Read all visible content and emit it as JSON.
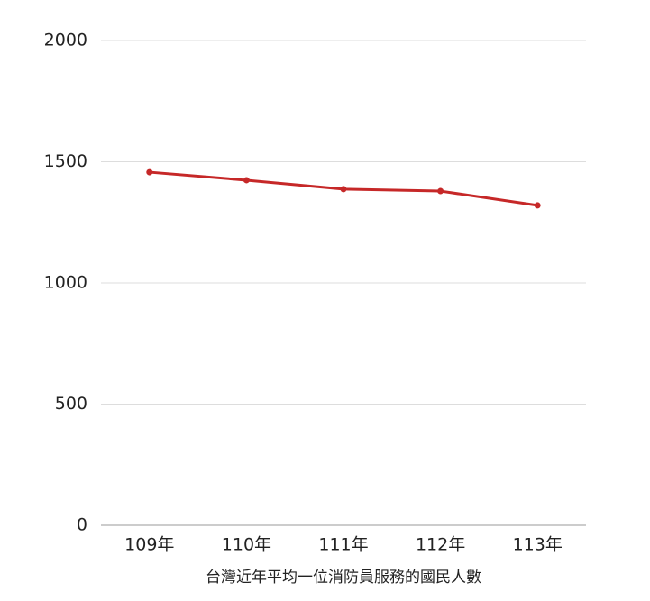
{
  "chart_data": {
    "type": "line",
    "x_label": "台灣近年平均一位消防員服務的國民人數",
    "categories": [
      "109年",
      "110年",
      "111年",
      "112年",
      "113年"
    ],
    "series": [
      {
        "color": "#c62828",
        "values": [
          1457,
          1424,
          1387,
          1379,
          1320
        ]
      }
    ],
    "ylim": [
      0,
      2000
    ],
    "yticks": [
      0,
      500,
      1000,
      1500,
      2000
    ],
    "grid": true
  }
}
